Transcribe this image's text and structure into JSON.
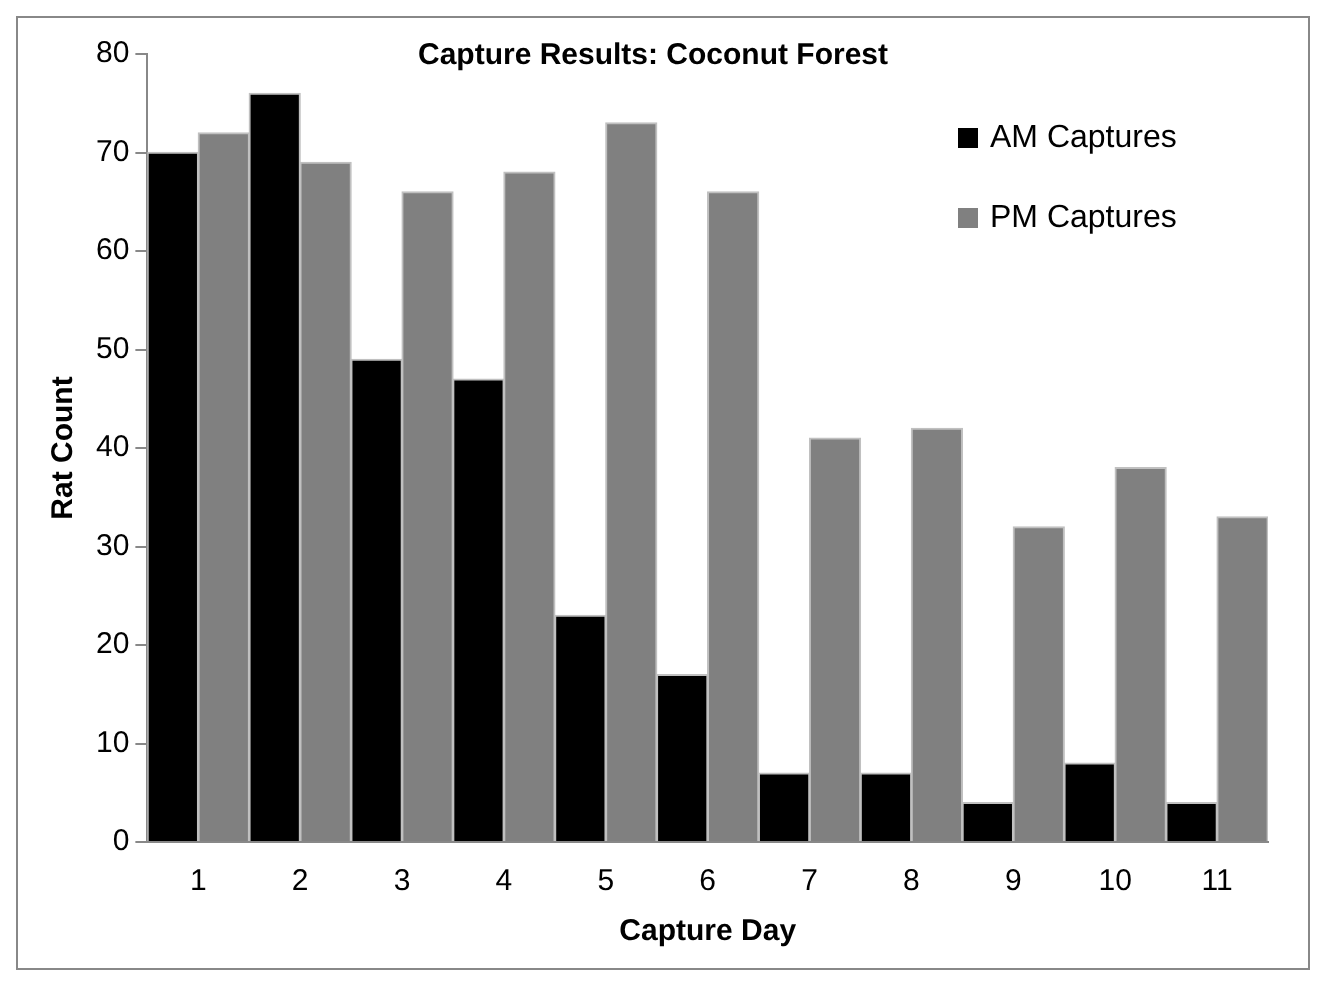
{
  "chart_data": {
    "type": "bar",
    "title": "Capture Results: Coconut Forest",
    "xlabel": "Capture Day",
    "ylabel": "Rat Count",
    "categories": [
      "1",
      "2",
      "3",
      "4",
      "5",
      "6",
      "7",
      "8",
      "9",
      "10",
      "11"
    ],
    "series": [
      {
        "name": "AM Captures",
        "color": "#000000",
        "values": [
          70,
          76,
          49,
          47,
          23,
          17,
          7,
          7,
          4,
          8,
          4
        ]
      },
      {
        "name": "PM Captures",
        "color": "#808080",
        "values": [
          72,
          69,
          66,
          68,
          73,
          66,
          41,
          42,
          32,
          38,
          33
        ]
      }
    ],
    "ylim": [
      0,
      80
    ],
    "yticks": [
      0,
      10,
      20,
      30,
      40,
      50,
      60,
      70,
      80
    ],
    "grid": false,
    "legend": "top right"
  }
}
